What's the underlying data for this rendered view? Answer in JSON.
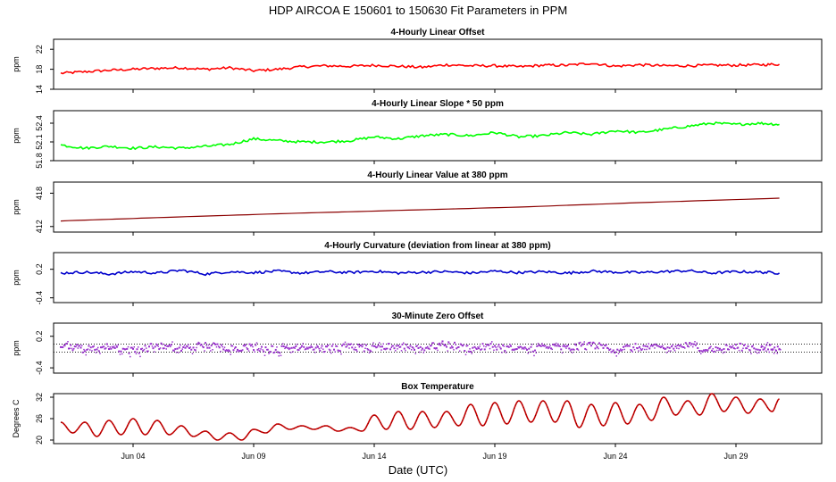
{
  "title": "HDP   AIRCOA E   150601 to 150630   Fit Parameters in PPM",
  "xlabel": "Date (UTC)",
  "x_ticks": [
    "Jun 04",
    "Jun 09",
    "Jun 14",
    "Jun 19",
    "Jun 24",
    "Jun 29"
  ],
  "chart_data": [
    {
      "type": "line",
      "title": "4-Hourly Linear Offset",
      "ylabel": "ppm",
      "color": "#ff0000",
      "ylim": [
        14,
        24
      ],
      "yticks": [
        "14",
        "18",
        "22"
      ],
      "x_days": [
        1.0,
        2.0,
        3.0,
        4.0,
        5.0,
        6.0,
        7.0,
        8.0,
        9.0,
        10.0,
        11.0,
        12.0,
        13.0,
        14.0,
        15.0,
        16.0,
        17.0,
        18.0,
        19.0,
        20.0,
        21.0,
        22.0,
        23.0,
        24.0,
        25.0,
        26.0,
        27.0,
        28.0,
        29.0,
        30.0,
        30.8
      ],
      "values": [
        17.2,
        17.5,
        17.8,
        18.0,
        18.2,
        18.3,
        18.0,
        18.3,
        17.7,
        18.0,
        18.5,
        18.7,
        18.6,
        18.8,
        18.6,
        18.4,
        18.9,
        18.7,
        18.7,
        18.5,
        18.8,
        18.8,
        19.2,
        18.6,
        18.9,
        18.7,
        18.7,
        18.8,
        18.8,
        18.9,
        19.0
      ],
      "hline": null
    },
    {
      "type": "line",
      "title": "4-Hourly Linear Slope * 50 ppm",
      "ylabel": "ppm",
      "color": "#00ff00",
      "ylim": [
        51.8,
        52.6
      ],
      "yticks": [
        "51.8",
        "52.1",
        "52.4"
      ],
      "x_days": [
        1.0,
        2.0,
        3.0,
        4.0,
        5.0,
        6.0,
        7.0,
        8.0,
        9.0,
        10.0,
        11.0,
        12.0,
        13.0,
        14.0,
        15.0,
        16.0,
        17.0,
        18.0,
        19.0,
        20.0,
        21.0,
        22.0,
        23.0,
        24.0,
        25.0,
        26.0,
        27.0,
        28.0,
        29.0,
        30.0,
        30.8
      ],
      "values": [
        52.05,
        52.0,
        52.03,
        52.0,
        52.02,
        52.0,
        52.03,
        52.06,
        52.15,
        52.12,
        52.1,
        52.1,
        52.12,
        52.18,
        52.15,
        52.2,
        52.22,
        52.2,
        52.25,
        52.18,
        52.2,
        52.25,
        52.22,
        52.28,
        52.25,
        52.3,
        52.35,
        52.4,
        52.38,
        52.4,
        52.38
      ],
      "hline": null
    },
    {
      "type": "line",
      "title": "4-Hourly Linear Value at 380 ppm",
      "ylabel": "ppm",
      "color": "#8b0000",
      "ylim": [
        411,
        420
      ],
      "yticks": [
        "412",
        "418"
      ],
      "x_days": [
        1.0,
        5.0,
        10.0,
        15.0,
        20.0,
        25.0,
        30.8
      ],
      "values": [
        413.0,
        413.6,
        414.3,
        414.9,
        415.5,
        416.3,
        417.1
      ],
      "hline": null
    },
    {
      "type": "line",
      "title": "4-Hourly Curvature (deviation from linear at 380 ppm)",
      "ylabel": "ppm",
      "color": "#0000cc",
      "ylim": [
        -0.5,
        0.55
      ],
      "yticks": [
        "-0.4",
        "0.2"
      ],
      "x_days": [
        1.0,
        2.0,
        3.0,
        4.0,
        5.0,
        6.0,
        7.0,
        8.0,
        9.0,
        10.0,
        11.0,
        12.0,
        13.0,
        14.0,
        15.0,
        16.0,
        17.0,
        18.0,
        19.0,
        20.0,
        21.0,
        22.0,
        23.0,
        24.0,
        25.0,
        26.0,
        27.0,
        28.0,
        29.0,
        30.0,
        30.8
      ],
      "values": [
        0.12,
        0.14,
        0.1,
        0.15,
        0.12,
        0.18,
        0.1,
        0.15,
        0.13,
        0.16,
        0.12,
        0.15,
        0.13,
        0.16,
        0.12,
        0.14,
        0.15,
        0.12,
        0.16,
        0.13,
        0.15,
        0.12,
        0.16,
        0.14,
        0.13,
        0.15,
        0.17,
        0.12,
        0.15,
        0.14,
        0.12
      ],
      "hline": null
    },
    {
      "type": "scatter",
      "title": "30-Minute Zero Offset",
      "ylabel": "ppm",
      "color": "#9932cc",
      "ylim": [
        -0.5,
        0.45
      ],
      "yticks": [
        "-0.4",
        "0.2"
      ],
      "x_days": [
        1.0,
        2.0,
        3.0,
        4.0,
        5.0,
        6.0,
        7.0,
        8.0,
        9.0,
        10.0,
        11.0,
        12.0,
        13.0,
        14.0,
        15.0,
        16.0,
        17.0,
        18.0,
        19.0,
        20.0,
        21.0,
        22.0,
        23.0,
        24.0,
        25.0,
        26.0,
        27.0,
        28.0,
        29.0,
        30.0,
        30.8
      ],
      "values": [
        0.05,
        -0.05,
        0.0,
        -0.08,
        0.02,
        -0.05,
        0.03,
        -0.02,
        0.0,
        -0.06,
        0.02,
        -0.04,
        0.0,
        -0.05,
        0.03,
        -0.02,
        0.05,
        -0.04,
        0.02,
        -0.06,
        0.0,
        -0.03,
        0.04,
        -0.05,
        0.0,
        -0.03,
        0.03,
        -0.05,
        0.0,
        -0.02,
        -0.04
      ],
      "hline": [
        0.05,
        -0.1
      ]
    },
    {
      "type": "line",
      "title": "Box Temperature",
      "ylabel": "Degrees C",
      "color": "#cc0000",
      "ylim": [
        19,
        33
      ],
      "yticks": [
        "20",
        "26",
        "32"
      ],
      "x_days": [
        1.0,
        1.5,
        2.0,
        2.5,
        3.0,
        3.5,
        4.0,
        4.5,
        5.0,
        5.5,
        6.0,
        6.5,
        7.0,
        7.5,
        8.0,
        8.5,
        9.0,
        9.5,
        10.0,
        10.5,
        11.0,
        11.5,
        12.0,
        12.5,
        13.0,
        13.5,
        14.0,
        14.5,
        15.0,
        15.5,
        16.0,
        16.5,
        17.0,
        17.5,
        18.0,
        18.5,
        19.0,
        19.5,
        20.0,
        20.5,
        21.0,
        21.5,
        22.0,
        22.5,
        23.0,
        23.5,
        24.0,
        24.5,
        25.0,
        25.5,
        26.0,
        26.5,
        27.0,
        27.5,
        28.0,
        28.5,
        29.0,
        29.5,
        30.0,
        30.5,
        30.8
      ],
      "values": [
        25.0,
        22.0,
        25.0,
        21.0,
        25.5,
        21.5,
        26.0,
        21.5,
        25.5,
        21.5,
        24.0,
        21.0,
        22.5,
        20.0,
        22.0,
        20.0,
        23.0,
        22.0,
        24.5,
        23.0,
        24.0,
        23.0,
        24.0,
        22.5,
        23.5,
        22.5,
        27.0,
        23.0,
        28.0,
        23.0,
        28.0,
        23.5,
        28.0,
        24.0,
        30.0,
        24.0,
        30.5,
        24.5,
        31.0,
        25.0,
        31.0,
        25.0,
        31.0,
        23.5,
        30.0,
        24.0,
        30.5,
        24.5,
        30.0,
        25.5,
        32.0,
        27.0,
        31.0,
        27.0,
        33.0,
        28.0,
        32.0,
        27.5,
        31.5,
        28.0,
        31.5
      ],
      "hline": null
    }
  ]
}
